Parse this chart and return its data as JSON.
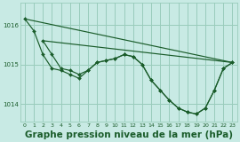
{
  "background_color": "#c8eae4",
  "grid_color": "#99ccbb",
  "line_color": "#1a5c2a",
  "marker_color": "#1a5c2a",
  "title": "Graphe pression niveau de la mer (hPa)",
  "title_fontsize": 7.5,
  "xlim": [
    -0.5,
    23.5
  ],
  "ylim": [
    1013.55,
    1016.55
  ],
  "yticks": [
    1014,
    1015,
    1016
  ],
  "xticks": [
    0,
    1,
    2,
    3,
    4,
    5,
    6,
    7,
    8,
    9,
    10,
    11,
    12,
    13,
    14,
    15,
    16,
    17,
    18,
    19,
    20,
    21,
    22,
    23
  ],
  "line1_x": [
    0,
    1,
    2,
    3,
    4,
    5,
    6,
    7,
    8,
    9,
    10,
    11,
    12,
    13,
    14,
    15,
    16,
    17,
    18,
    19,
    20,
    21,
    22,
    23
  ],
  "line1_y": [
    1016.15,
    1015.85,
    1015.25,
    1014.9,
    1014.85,
    1014.75,
    1014.65,
    1014.85,
    1015.05,
    1015.1,
    1015.15,
    1015.25,
    1015.2,
    1015.0,
    1014.6,
    1014.35,
    1014.1,
    1013.9,
    1013.8,
    1013.75,
    1013.9,
    1014.35,
    1014.9,
    1015.05
  ],
  "line2_x": [
    2,
    3,
    4,
    5,
    6,
    7,
    8,
    9,
    10,
    11,
    12,
    13,
    14,
    15,
    16,
    17,
    18,
    19,
    20,
    21,
    22,
    23
  ],
  "line2_y": [
    1015.6,
    1015.25,
    1014.9,
    1014.85,
    1014.75,
    1014.85,
    1015.05,
    1015.1,
    1015.15,
    1015.25,
    1015.2,
    1015.0,
    1014.6,
    1014.35,
    1014.1,
    1013.9,
    1013.8,
    1013.75,
    1013.9,
    1014.35,
    1014.9,
    1015.05
  ],
  "trend1_x": [
    0,
    23
  ],
  "trend1_y": [
    1016.15,
    1015.05
  ],
  "trend2_x": [
    2,
    23
  ],
  "trend2_y": [
    1015.6,
    1015.05
  ]
}
